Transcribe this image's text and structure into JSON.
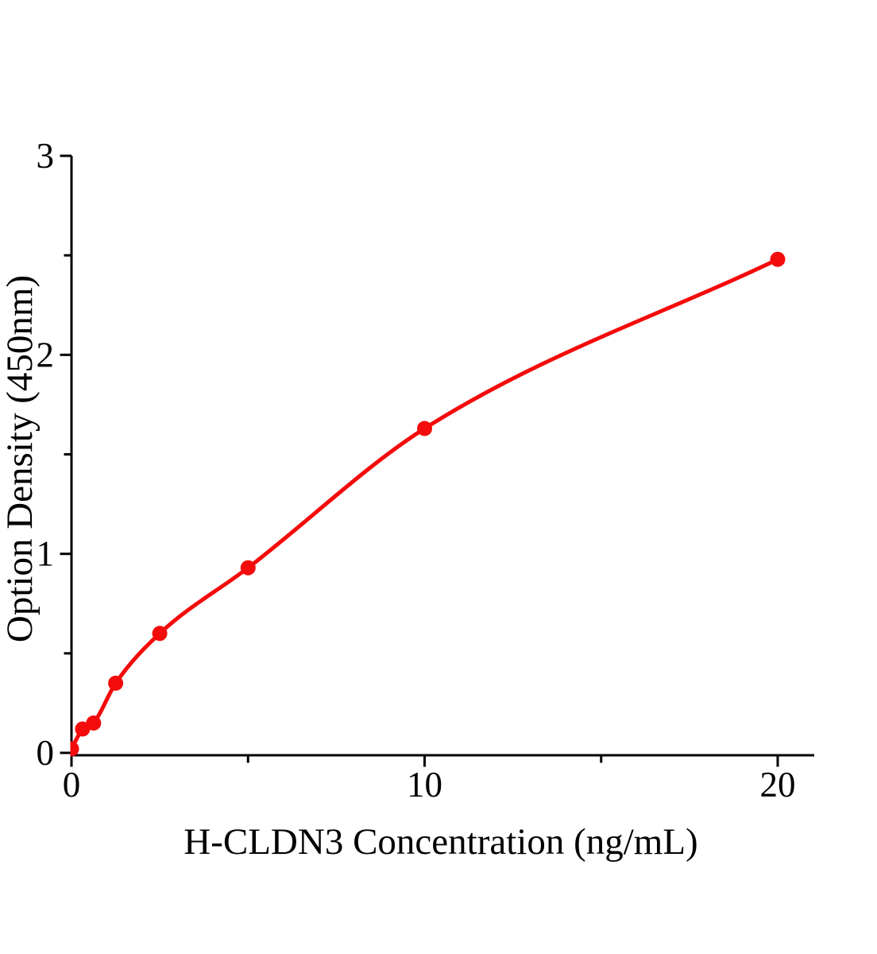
{
  "page": {
    "background": "#ffffff"
  },
  "chart_data": {
    "type": "scatter",
    "title": "",
    "xlabel": "H-CLDN3 Concentration (ng/mL)",
    "ylabel": "Option Density (450nm)",
    "xlim": [
      0,
      21
    ],
    "ylim": [
      0,
      3
    ],
    "xticks": [
      0,
      10,
      20
    ],
    "xtick_labels": [
      "0",
      "10",
      "20"
    ],
    "xticks_minor": [
      5,
      15
    ],
    "yticks": [
      0,
      1,
      2,
      3
    ],
    "ytick_labels": [
      "0",
      "1",
      "2",
      "3"
    ],
    "yticks_minor": [
      0.5,
      1.5,
      2.5
    ],
    "grid": false,
    "legend": false,
    "axis_color": "#000000",
    "curve_color": "#f40b0b",
    "series": [
      {
        "marker": "filled-circle",
        "color": "#f40b0b",
        "has_fit_curve": true,
        "x": [
          0,
          0.313,
          0.625,
          1.25,
          2.5,
          5,
          10,
          20
        ],
        "y": [
          0.02,
          0.12,
          0.15,
          0.35,
          0.6,
          0.93,
          1.63,
          2.48
        ]
      }
    ]
  }
}
